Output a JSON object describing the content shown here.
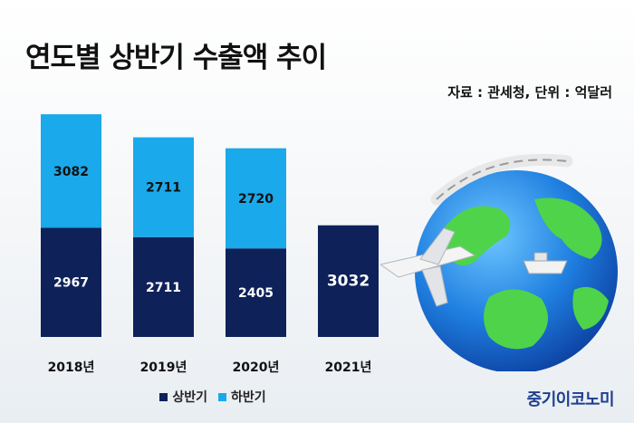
{
  "header": {
    "title": "연도별 상반기 수출액 추이",
    "source": "자료 : 관세청, 단위 : 억달러"
  },
  "brand": "중기이코노미",
  "colors": {
    "first_half": "#0e2159",
    "second_half": "#1aa9ea",
    "brand": "#1d3f8f"
  },
  "chart_data": {
    "type": "bar",
    "stacked": true,
    "categories": [
      "2018년",
      "2019년",
      "2020년",
      "2021년"
    ],
    "series": [
      {
        "name": "상반기",
        "values": [
          2967,
          2711,
          2405,
          3032
        ]
      },
      {
        "name": "하반기",
        "values": [
          3082,
          2711,
          2720,
          null
        ]
      }
    ],
    "title": "연도별 상반기 수출액 추이",
    "ylim": [
      0,
      6200
    ],
    "grid": false,
    "legend_position": "bottom"
  },
  "illustration": {
    "globe": "globe-illustration",
    "airplane": "airplane-icon",
    "ship": "ship-icon",
    "train": "train-icon"
  }
}
